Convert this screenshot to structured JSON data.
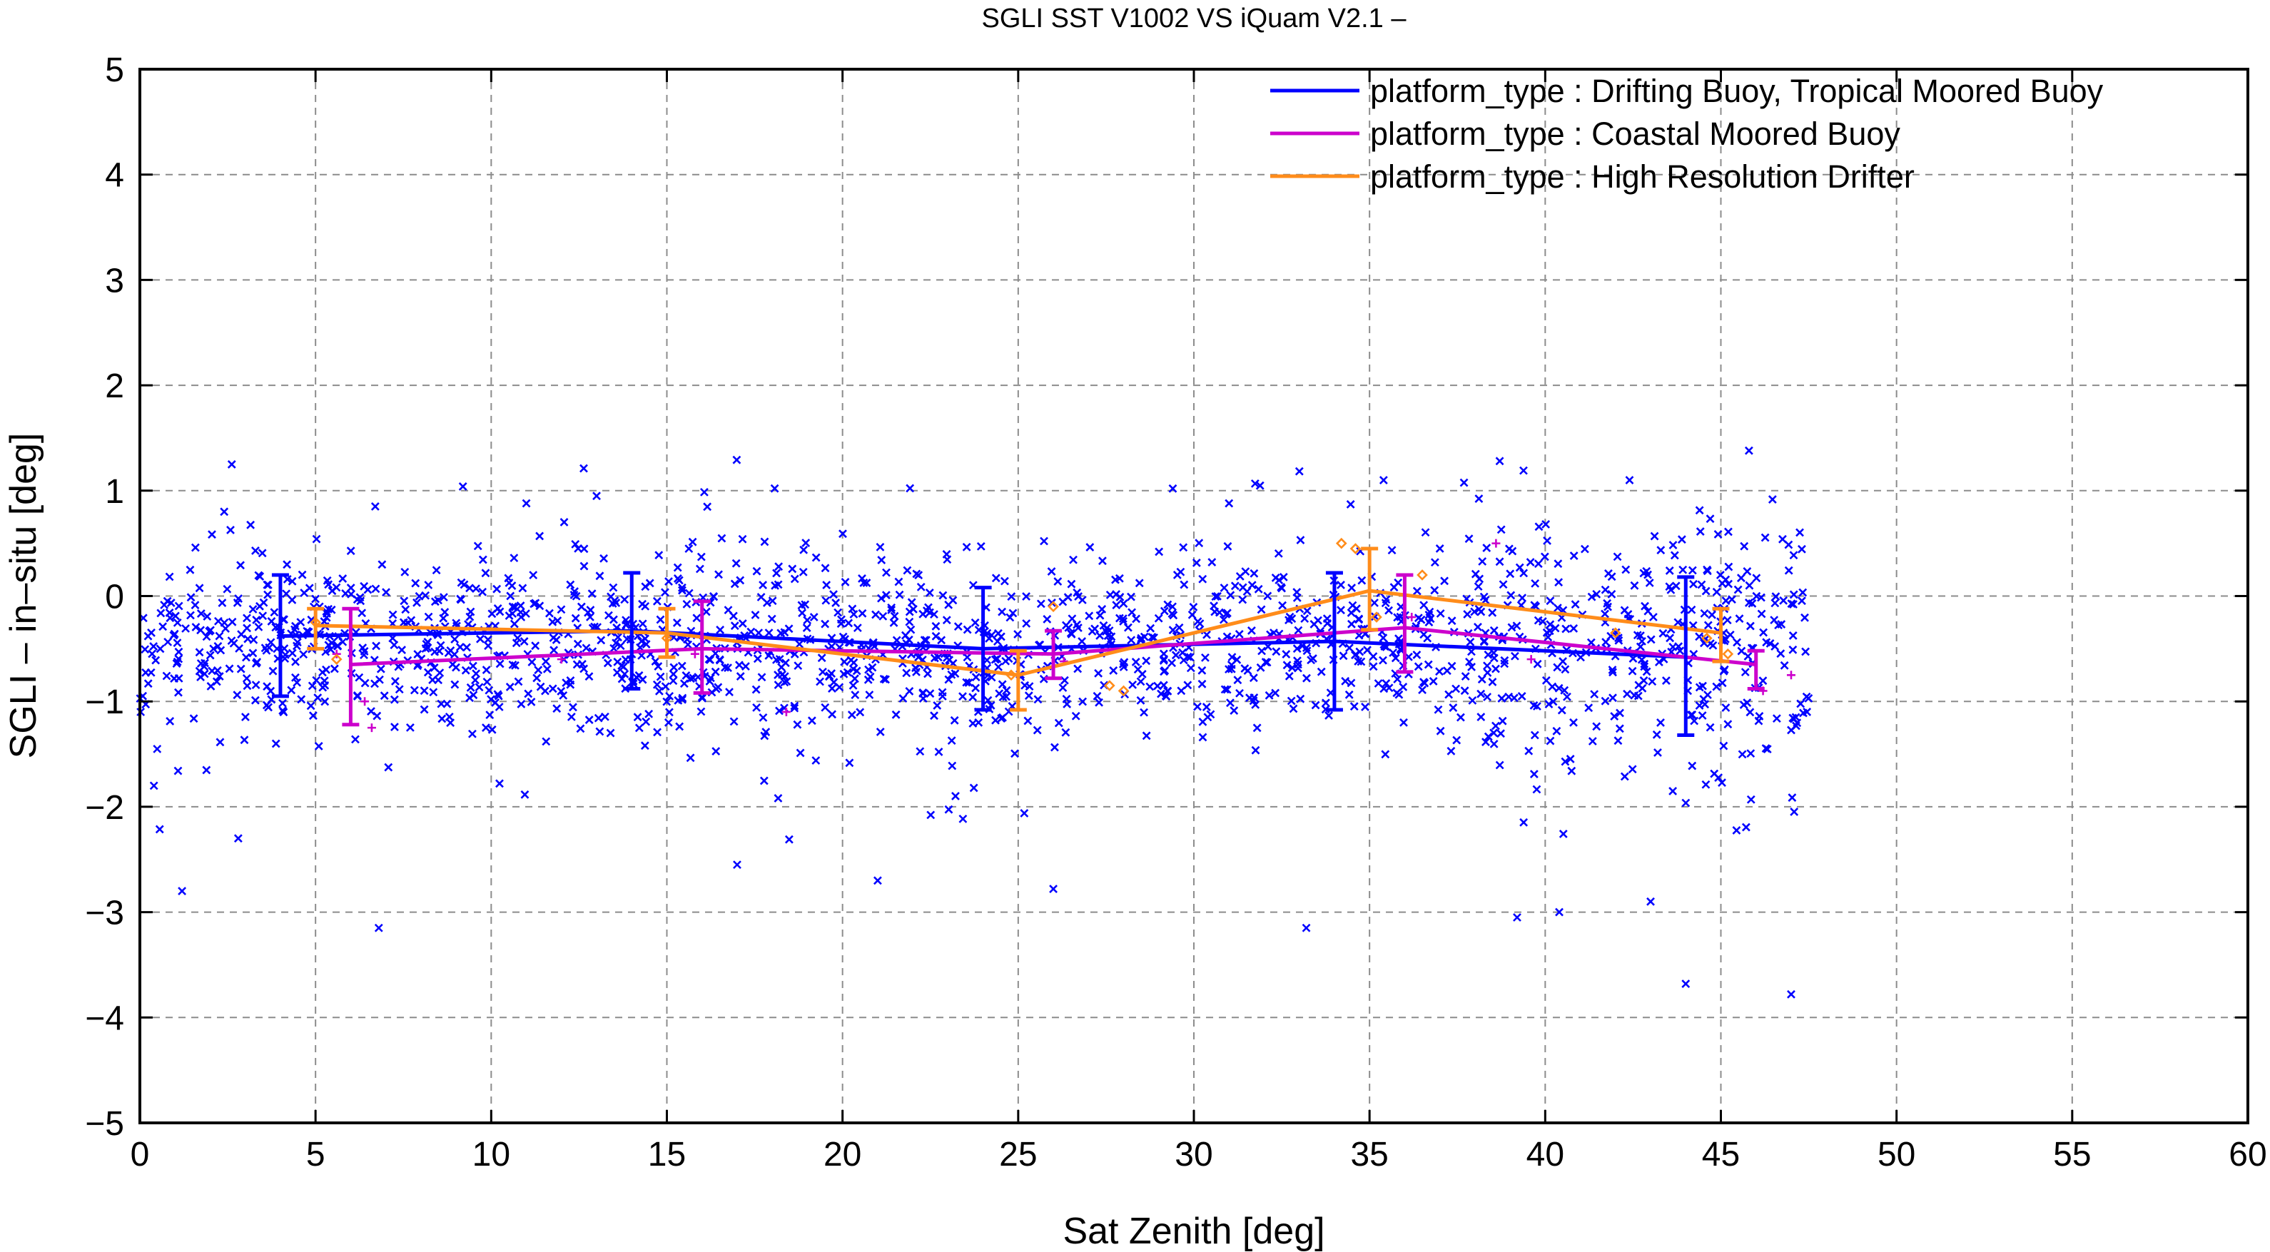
{
  "chart_data": {
    "type": "scatter",
    "title": "SGLI SST V1002 VS iQuam V2.1  –",
    "xlabel": "Sat Zenith [deg]",
    "ylabel": "SGLI – in–situ [deg]",
    "xlim": [
      0,
      60
    ],
    "ylim": [
      -5,
      5
    ],
    "x_ticks": [
      0,
      5,
      10,
      15,
      20,
      25,
      30,
      35,
      40,
      45,
      50,
      55,
      60
    ],
    "y_ticks": [
      -5,
      -4,
      -3,
      -2,
      -1,
      0,
      1,
      2,
      3,
      4,
      5
    ],
    "x_tick_labels": [
      "0",
      "5",
      "10",
      "15",
      "20",
      "25",
      "30",
      "35",
      "40",
      "45",
      "50",
      "55",
      "60"
    ],
    "y_tick_labels": [
      "−5",
      "−4",
      "−3",
      "−2",
      "−1",
      "0",
      "1",
      "2",
      "3",
      "4",
      "5"
    ],
    "grid": true,
    "legend_position": "top-right",
    "series": [
      {
        "name": "platform_type : Drifting Buoy, Tropical Moored Buoy",
        "color": "#0000ff",
        "marker": "x-mark",
        "mean_x": [
          4,
          14,
          24,
          34,
          44
        ],
        "mean_y": [
          -0.38,
          -0.33,
          -0.5,
          -0.43,
          -0.58
        ],
        "err_low": [
          -0.95,
          -0.88,
          -1.08,
          -1.08,
          -1.32
        ],
        "err_high": [
          0.2,
          0.22,
          0.08,
          0.22,
          0.18
        ],
        "scatter_range_x": [
          0,
          47.5
        ],
        "scatter_approx_center": -0.45,
        "scatter_outliers": [
          [
            0.4,
            -1.8
          ],
          [
            1.2,
            -2.8
          ],
          [
            2.4,
            0.8
          ],
          [
            2.8,
            -2.3
          ],
          [
            6.8,
            -3.15
          ],
          [
            6.7,
            0.85
          ],
          [
            11.0,
            0.88
          ],
          [
            13.0,
            0.95
          ],
          [
            17.0,
            -2.55
          ],
          [
            21.0,
            -2.7
          ],
          [
            26.0,
            -2.78
          ],
          [
            29.4,
            1.02
          ],
          [
            31.0,
            0.88
          ],
          [
            33.2,
            -3.15
          ],
          [
            35.4,
            1.1
          ],
          [
            39.2,
            -3.05
          ],
          [
            40.4,
            -3.0
          ],
          [
            42.4,
            1.1
          ],
          [
            44.0,
            -3.68
          ],
          [
            45.8,
            1.38
          ],
          [
            47.0,
            -3.78
          ],
          [
            43.0,
            -2.9
          ]
        ]
      },
      {
        "name": "platform_type : Coastal Moored Buoy",
        "color": "#cc00cc",
        "marker": "plus",
        "mean_x": [
          6,
          16,
          26,
          36,
          46
        ],
        "mean_y": [
          -0.65,
          -0.5,
          -0.55,
          -0.3,
          -0.65
        ],
        "err_low": [
          -1.22,
          -0.92,
          -0.78,
          -0.72,
          -0.88
        ],
        "err_high": [
          -0.12,
          -0.05,
          -0.33,
          0.2,
          -0.52
        ],
        "points": [
          [
            5.6,
            -0.55
          ],
          [
            6.4,
            -1.0
          ],
          [
            6.6,
            -1.25
          ],
          [
            12.0,
            -0.6
          ],
          [
            15.8,
            -0.55
          ],
          [
            18.4,
            -1.1
          ],
          [
            26.3,
            -0.62
          ],
          [
            36.2,
            -0.2
          ],
          [
            38.6,
            0.5
          ],
          [
            39.6,
            -0.6
          ],
          [
            46.2,
            -0.9
          ],
          [
            47.0,
            -0.75
          ]
        ]
      },
      {
        "name": "platform_type : High Resolution Drifter",
        "color": "#ff8c1a",
        "marker": "diamond",
        "mean_x": [
          5,
          15,
          25,
          35,
          45
        ],
        "mean_y": [
          -0.28,
          -0.35,
          -0.75,
          0.05,
          -0.35
        ],
        "err_low": [
          -0.5,
          -0.58,
          -1.08,
          -0.32,
          -0.62
        ],
        "err_high": [
          -0.12,
          -0.12,
          -0.52,
          0.45,
          -0.12
        ],
        "points": [
          [
            5.0,
            -0.25
          ],
          [
            5.6,
            -0.6
          ],
          [
            15.0,
            -0.4
          ],
          [
            24.8,
            -0.75
          ],
          [
            26.0,
            -0.1
          ],
          [
            27.6,
            -0.85
          ],
          [
            28.0,
            -0.9
          ],
          [
            34.6,
            0.45
          ],
          [
            34.2,
            0.5
          ],
          [
            35.2,
            -0.2
          ],
          [
            36.5,
            0.2
          ],
          [
            42.0,
            -0.35
          ],
          [
            44.6,
            -0.4
          ],
          [
            45.2,
            -0.55
          ]
        ]
      }
    ]
  }
}
